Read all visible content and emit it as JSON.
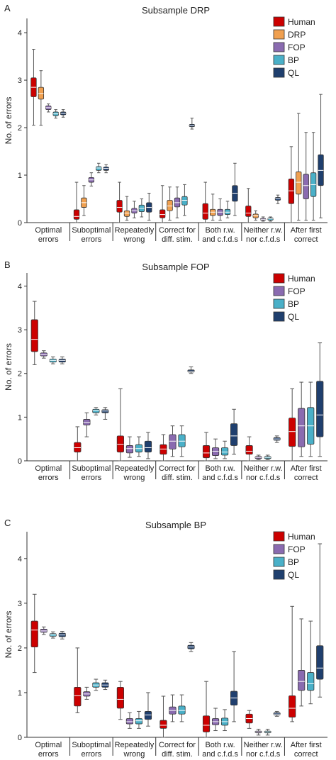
{
  "chart_data": [
    {
      "type": "box",
      "panel_label": "A",
      "title": "Subsample DRP",
      "ylabel": "No. of errors",
      "ylim": [
        0,
        4.3
      ],
      "yticks": [
        0,
        1,
        2,
        3,
        4
      ],
      "categories": [
        "Optimal\nerrors",
        "Suboptimal\nerrors",
        "Repeatedly\nwrong",
        "Correct for\ndiff. stim.",
        "Both r.w.\nand c.f.d.s",
        "Neither r.w.\nnor c.f.d.s",
        "After first\ncorrect"
      ],
      "legend_position": "top-right",
      "series": [
        {
          "name": "Human",
          "color": "#cc0000",
          "boxes": [
            {
              "cat": 0,
              "wlo": 2.05,
              "q1": 2.65,
              "med": 2.85,
              "q3": 3.05,
              "whi": 3.65
            },
            {
              "cat": 1,
              "wlo": 0.0,
              "q1": 0.07,
              "med": 0.13,
              "q3": 0.27,
              "whi": 0.85
            },
            {
              "cat": 2,
              "wlo": 0.0,
              "q1": 0.22,
              "med": 0.32,
              "q3": 0.47,
              "whi": 0.85
            },
            {
              "cat": 3,
              "wlo": 0.0,
              "q1": 0.1,
              "med": 0.17,
              "q3": 0.27,
              "whi": 0.78
            },
            {
              "cat": 4,
              "wlo": 0.0,
              "q1": 0.07,
              "med": 0.2,
              "q3": 0.4,
              "whi": 0.85
            },
            {
              "cat": 5,
              "wlo": 0.0,
              "q1": 0.13,
              "med": 0.2,
              "q3": 0.35,
              "whi": 0.72
            },
            {
              "cat": 6,
              "wlo": 0.0,
              "q1": 0.4,
              "med": 0.67,
              "q3": 0.92,
              "whi": 1.6
            }
          ]
        },
        {
          "name": "DRP",
          "color": "#f0a050",
          "boxes": [
            {
              "cat": 0,
              "wlo": 2.05,
              "q1": 2.6,
              "med": 2.72,
              "q3": 2.85,
              "whi": 3.2
            },
            {
              "cat": 1,
              "wlo": 0.15,
              "q1": 0.32,
              "med": 0.42,
              "q3": 0.52,
              "whi": 0.78
            },
            {
              "cat": 2,
              "wlo": 0.05,
              "q1": 0.13,
              "med": 0.2,
              "q3": 0.25,
              "whi": 0.55
            },
            {
              "cat": 3,
              "wlo": 0.05,
              "q1": 0.25,
              "med": 0.35,
              "q3": 0.47,
              "whi": 0.75
            },
            {
              "cat": 4,
              "wlo": 0.05,
              "q1": 0.15,
              "med": 0.22,
              "q3": 0.28,
              "whi": 0.6
            },
            {
              "cat": 5,
              "wlo": 0.05,
              "q1": 0.1,
              "med": 0.15,
              "q3": 0.18,
              "whi": 0.25
            },
            {
              "cat": 6,
              "wlo": 0.05,
              "q1": 0.6,
              "med": 0.85,
              "q3": 1.07,
              "whi": 2.3
            }
          ]
        },
        {
          "name": "FOP",
          "color": "#8a6bb0",
          "boxes": [
            {
              "cat": 0,
              "wlo": 2.33,
              "q1": 2.38,
              "med": 2.42,
              "q3": 2.46,
              "whi": 2.5
            },
            {
              "cat": 1,
              "wlo": 0.77,
              "q1": 0.85,
              "med": 0.9,
              "q3": 0.95,
              "whi": 1.05
            },
            {
              "cat": 2,
              "wlo": 0.1,
              "q1": 0.2,
              "med": 0.25,
              "q3": 0.3,
              "whi": 0.45
            },
            {
              "cat": 3,
              "wlo": 0.1,
              "q1": 0.33,
              "med": 0.42,
              "q3": 0.52,
              "whi": 0.75
            },
            {
              "cat": 4,
              "wlo": 0.05,
              "q1": 0.15,
              "med": 0.22,
              "q3": 0.28,
              "whi": 0.5
            },
            {
              "cat": 5,
              "wlo": 0.03,
              "q1": 0.05,
              "med": 0.07,
              "q3": 0.09,
              "whi": 0.12
            },
            {
              "cat": 6,
              "wlo": 0.05,
              "q1": 0.5,
              "med": 0.78,
              "q3": 1.02,
              "whi": 1.9
            }
          ]
        },
        {
          "name": "BP",
          "color": "#4ab0c8",
          "boxes": [
            {
              "cat": 0,
              "wlo": 2.2,
              "q1": 2.25,
              "med": 2.29,
              "q3": 2.33,
              "whi": 2.38
            },
            {
              "cat": 1,
              "wlo": 1.05,
              "q1": 1.1,
              "med": 1.15,
              "q3": 1.18,
              "whi": 1.25
            },
            {
              "cat": 2,
              "wlo": 0.12,
              "q1": 0.23,
              "med": 0.3,
              "q3": 0.37,
              "whi": 0.5
            },
            {
              "cat": 3,
              "wlo": 0.15,
              "q1": 0.37,
              "med": 0.47,
              "q3": 0.55,
              "whi": 0.8
            },
            {
              "cat": 4,
              "wlo": 0.1,
              "q1": 0.17,
              "med": 0.22,
              "q3": 0.28,
              "whi": 0.45
            },
            {
              "cat": 5,
              "wlo": 0.03,
              "q1": 0.05,
              "med": 0.08,
              "q3": 0.1,
              "whi": 0.12
            },
            {
              "cat": 6,
              "wlo": 0.05,
              "q1": 0.55,
              "med": 0.8,
              "q3": 1.05,
              "whi": 1.9
            }
          ]
        },
        {
          "name": "QL",
          "color": "#1f3f6e",
          "boxes": [
            {
              "cat": 0,
              "wlo": 2.22,
              "q1": 2.27,
              "med": 2.3,
              "q3": 2.33,
              "whi": 2.38
            },
            {
              "cat": 1,
              "wlo": 1.05,
              "q1": 1.1,
              "med": 1.14,
              "q3": 1.17,
              "whi": 1.22
            },
            {
              "cat": 2,
              "wlo": 0.05,
              "q1": 0.22,
              "med": 0.32,
              "q3": 0.42,
              "whi": 0.62
            },
            {
              "cat": 3,
              "wlo": 1.97,
              "q1": 2.02,
              "med": 2.04,
              "q3": 2.07,
              "whi": 2.2
            },
            {
              "cat": 4,
              "wlo": 0.15,
              "q1": 0.45,
              "med": 0.62,
              "q3": 0.78,
              "whi": 1.25
            },
            {
              "cat": 5,
              "wlo": 0.4,
              "q1": 0.47,
              "med": 0.5,
              "q3": 0.53,
              "whi": 0.58
            },
            {
              "cat": 6,
              "wlo": 0.1,
              "q1": 0.78,
              "med": 1.1,
              "q3": 1.43,
              "whi": 2.7
            }
          ]
        }
      ]
    },
    {
      "type": "box",
      "panel_label": "B",
      "title": "Subsample FOP",
      "ylabel": "No. of errors",
      "ylim": [
        0,
        4.3
      ],
      "yticks": [
        0,
        1,
        2,
        3,
        4
      ],
      "categories": [
        "Optimal\nerrors",
        "Suboptimal\nerrors",
        "Repeatedly\nwrong",
        "Correct for\ndiff. stim.",
        "Both r.w.\nand c.f.d.s",
        "Neither r.w.\nnor c.f.d.s",
        "After first\ncorrect"
      ],
      "legend_position": "top-right",
      "series": [
        {
          "name": "Human",
          "color": "#cc0000",
          "boxes": [
            {
              "cat": 0,
              "wlo": 2.2,
              "q1": 2.5,
              "med": 2.78,
              "q3": 3.23,
              "whi": 3.65
            },
            {
              "cat": 1,
              "wlo": 0.0,
              "q1": 0.2,
              "med": 0.3,
              "q3": 0.42,
              "whi": 0.78
            },
            {
              "cat": 2,
              "wlo": 0.0,
              "q1": 0.2,
              "med": 0.38,
              "q3": 0.57,
              "whi": 1.65
            },
            {
              "cat": 3,
              "wlo": 0.0,
              "q1": 0.15,
              "med": 0.27,
              "q3": 0.37,
              "whi": 0.6
            },
            {
              "cat": 4,
              "wlo": 0.0,
              "q1": 0.07,
              "med": 0.18,
              "q3": 0.35,
              "whi": 0.65
            },
            {
              "cat": 5,
              "wlo": 0.0,
              "q1": 0.15,
              "med": 0.22,
              "q3": 0.35,
              "whi": 0.55
            },
            {
              "cat": 6,
              "wlo": 0.0,
              "q1": 0.33,
              "med": 0.67,
              "q3": 0.98,
              "whi": 1.65
            }
          ]
        },
        {
          "name": "FOP",
          "color": "#8a6bb0",
          "boxes": [
            {
              "cat": 0,
              "wlo": 2.35,
              "q1": 2.4,
              "med": 2.43,
              "q3": 2.47,
              "whi": 2.52
            },
            {
              "cat": 1,
              "wlo": 0.55,
              "q1": 0.82,
              "med": 0.88,
              "q3": 0.95,
              "whi": 1.1
            },
            {
              "cat": 2,
              "wlo": 0.08,
              "q1": 0.18,
              "med": 0.28,
              "q3": 0.35,
              "whi": 0.55
            },
            {
              "cat": 3,
              "wlo": 0.1,
              "q1": 0.27,
              "med": 0.45,
              "q3": 0.6,
              "whi": 0.8
            },
            {
              "cat": 4,
              "wlo": 0.05,
              "q1": 0.12,
              "med": 0.22,
              "q3": 0.3,
              "whi": 0.5
            },
            {
              "cat": 5,
              "wlo": 0.03,
              "q1": 0.05,
              "med": 0.08,
              "q3": 0.1,
              "whi": 0.13
            },
            {
              "cat": 6,
              "wlo": 0.1,
              "q1": 0.32,
              "med": 0.8,
              "q3": 1.2,
              "whi": 1.8
            }
          ]
        },
        {
          "name": "BP",
          "color": "#4ab0c8",
          "boxes": [
            {
              "cat": 0,
              "wlo": 2.22,
              "q1": 2.26,
              "med": 2.3,
              "q3": 2.33,
              "whi": 2.38
            },
            {
              "cat": 1,
              "wlo": 1.05,
              "q1": 1.1,
              "med": 1.15,
              "q3": 1.18,
              "whi": 1.22
            },
            {
              "cat": 2,
              "wlo": 0.1,
              "q1": 0.2,
              "med": 0.28,
              "q3": 0.37,
              "whi": 0.55
            },
            {
              "cat": 3,
              "wlo": 0.1,
              "q1": 0.32,
              "med": 0.45,
              "q3": 0.6,
              "whi": 0.8
            },
            {
              "cat": 4,
              "wlo": 0.05,
              "q1": 0.13,
              "med": 0.2,
              "q3": 0.3,
              "whi": 0.45
            },
            {
              "cat": 5,
              "wlo": 0.03,
              "q1": 0.05,
              "med": 0.08,
              "q3": 0.1,
              "whi": 0.13
            },
            {
              "cat": 6,
              "wlo": 0.1,
              "q1": 0.38,
              "med": 0.8,
              "q3": 1.22,
              "whi": 1.8
            }
          ]
        },
        {
          "name": "QL",
          "color": "#1f3f6e",
          "boxes": [
            {
              "cat": 0,
              "wlo": 2.22,
              "q1": 2.26,
              "med": 2.3,
              "q3": 2.33,
              "whi": 2.38
            },
            {
              "cat": 1,
              "wlo": 0.95,
              "q1": 1.1,
              "med": 1.14,
              "q3": 1.17,
              "whi": 1.22
            },
            {
              "cat": 2,
              "wlo": 0.05,
              "q1": 0.2,
              "med": 0.3,
              "q3": 0.45,
              "whi": 0.65
            },
            {
              "cat": 3,
              "wlo": 2.0,
              "q1": 2.03,
              "med": 2.05,
              "q3": 2.08,
              "whi": 2.15
            },
            {
              "cat": 4,
              "wlo": 0.15,
              "q1": 0.35,
              "med": 0.57,
              "q3": 0.85,
              "whi": 1.18
            },
            {
              "cat": 5,
              "wlo": 0.42,
              "q1": 0.47,
              "med": 0.5,
              "q3": 0.53,
              "whi": 0.57
            },
            {
              "cat": 6,
              "wlo": 0.1,
              "q1": 0.55,
              "med": 1.05,
              "q3": 1.82,
              "whi": 2.7
            }
          ]
        }
      ]
    },
    {
      "type": "box",
      "panel_label": "C",
      "title": "Subsample BP",
      "ylabel": "No. of errors",
      "ylim": [
        0,
        4.6
      ],
      "yticks": [
        0,
        1,
        2,
        3,
        4
      ],
      "categories": [
        "Optimal\nerrors",
        "Suboptimal\nerrors",
        "Repeatedly\nwrong",
        "Correct for\ndiff. stim.",
        "Both r.w.\nand c.f.d.s",
        "Neither r.w.\nnor c.f.d.s",
        "After first\ncorrect"
      ],
      "legend_position": "top-right",
      "series": [
        {
          "name": "Human",
          "color": "#cc0000",
          "boxes": [
            {
              "cat": 0,
              "wlo": 1.45,
              "q1": 2.02,
              "med": 2.4,
              "q3": 2.6,
              "whi": 3.2
            },
            {
              "cat": 1,
              "wlo": 0.55,
              "q1": 0.7,
              "med": 0.93,
              "q3": 1.12,
              "whi": 2.0
            },
            {
              "cat": 2,
              "wlo": 0.4,
              "q1": 0.65,
              "med": 0.85,
              "q3": 1.12,
              "whi": 1.25
            },
            {
              "cat": 3,
              "wlo": 0.0,
              "q1": 0.2,
              "med": 0.27,
              "q3": 0.38,
              "whi": 0.92
            },
            {
              "cat": 4,
              "wlo": 0.0,
              "q1": 0.12,
              "med": 0.27,
              "q3": 0.48,
              "whi": 1.25
            },
            {
              "cat": 5,
              "wlo": 0.2,
              "q1": 0.32,
              "med": 0.42,
              "q3": 0.52,
              "whi": 0.6
            },
            {
              "cat": 6,
              "wlo": 0.35,
              "q1": 0.45,
              "med": 0.65,
              "q3": 0.93,
              "whi": 2.93
            }
          ]
        },
        {
          "name": "FOP",
          "color": "#8a6bb0",
          "boxes": [
            {
              "cat": 0,
              "wlo": 2.3,
              "q1": 2.35,
              "med": 2.38,
              "q3": 2.42,
              "whi": 2.47
            },
            {
              "cat": 1,
              "wlo": 0.85,
              "q1": 0.92,
              "med": 0.97,
              "q3": 1.02,
              "whi": 1.12
            },
            {
              "cat": 2,
              "wlo": 0.2,
              "q1": 0.3,
              "med": 0.35,
              "q3": 0.42,
              "whi": 0.55
            },
            {
              "cat": 3,
              "wlo": 0.35,
              "q1": 0.52,
              "med": 0.6,
              "q3": 0.68,
              "whi": 0.95
            },
            {
              "cat": 4,
              "wlo": 0.15,
              "q1": 0.28,
              "med": 0.35,
              "q3": 0.42,
              "whi": 0.65
            },
            {
              "cat": 5,
              "wlo": 0.05,
              "q1": 0.1,
              "med": 0.12,
              "q3": 0.14,
              "whi": 0.18
            },
            {
              "cat": 6,
              "wlo": 0.7,
              "q1": 1.05,
              "med": 1.25,
              "q3": 1.5,
              "whi": 2.65
            }
          ]
        },
        {
          "name": "BP",
          "color": "#4ab0c8",
          "boxes": [
            {
              "cat": 0,
              "wlo": 2.22,
              "q1": 2.26,
              "med": 2.29,
              "q3": 2.32,
              "whi": 2.36
            },
            {
              "cat": 1,
              "wlo": 1.05,
              "q1": 1.12,
              "med": 1.17,
              "q3": 1.22,
              "whi": 1.3
            },
            {
              "cat": 2,
              "wlo": 0.2,
              "q1": 0.3,
              "med": 0.37,
              "q3": 0.42,
              "whi": 0.58
            },
            {
              "cat": 3,
              "wlo": 0.35,
              "q1": 0.52,
              "med": 0.6,
              "q3": 0.7,
              "whi": 0.95
            },
            {
              "cat": 4,
              "wlo": 0.15,
              "q1": 0.27,
              "med": 0.35,
              "q3": 0.43,
              "whi": 0.62
            },
            {
              "cat": 5,
              "wlo": 0.05,
              "q1": 0.1,
              "med": 0.12,
              "q3": 0.14,
              "whi": 0.18
            },
            {
              "cat": 6,
              "wlo": 0.75,
              "q1": 1.05,
              "med": 1.2,
              "q3": 1.45,
              "whi": 2.6
            }
          ]
        },
        {
          "name": "QL",
          "color": "#1f3f6e",
          "boxes": [
            {
              "cat": 0,
              "wlo": 2.2,
              "q1": 2.25,
              "med": 2.29,
              "q3": 2.33,
              "whi": 2.37
            },
            {
              "cat": 1,
              "wlo": 1.07,
              "q1": 1.12,
              "med": 1.17,
              "q3": 1.22,
              "whi": 1.28
            },
            {
              "cat": 2,
              "wlo": 0.25,
              "q1": 0.4,
              "med": 0.5,
              "q3": 0.58,
              "whi": 1.0
            },
            {
              "cat": 3,
              "wlo": 1.92,
              "q1": 1.98,
              "med": 2.02,
              "q3": 2.06,
              "whi": 2.12
            },
            {
              "cat": 4,
              "wlo": 0.35,
              "q1": 0.72,
              "med": 0.88,
              "q3": 1.03,
              "whi": 1.92
            },
            {
              "cat": 5,
              "wlo": 0.47,
              "q1": 0.5,
              "med": 0.52,
              "q3": 0.55,
              "whi": 0.58
            },
            {
              "cat": 6,
              "wlo": 0.9,
              "q1": 1.3,
              "med": 1.55,
              "q3": 2.05,
              "whi": 4.33
            }
          ]
        }
      ]
    }
  ]
}
